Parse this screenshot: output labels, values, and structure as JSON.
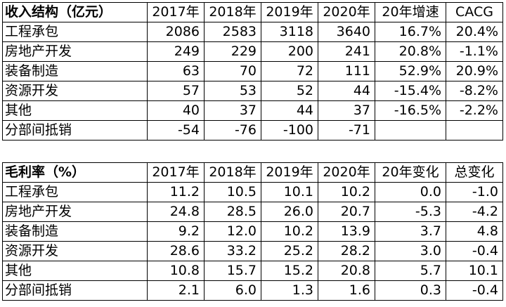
{
  "revenue": {
    "headers": [
      "收入结构（亿元）",
      "2017年",
      "2018年",
      "2019年",
      "2020年",
      "20年增速",
      "CACG"
    ],
    "rows": [
      [
        "工程承包",
        "2086",
        "2583",
        "3118",
        "3640",
        "16.7%",
        "20.4%"
      ],
      [
        "房地产开发",
        "249",
        "229",
        "200",
        "241",
        "20.8%",
        "-1.1%"
      ],
      [
        "装备制造",
        "63",
        "70",
        "72",
        "111",
        "52.9%",
        "20.9%"
      ],
      [
        "资源开发",
        "57",
        "53",
        "52",
        "44",
        "-15.4%",
        "-8.2%"
      ],
      [
        "其他",
        "40",
        "37",
        "44",
        "37",
        "-16.5%",
        "-2.2%"
      ],
      [
        "分部间抵销",
        "-54",
        "-76",
        "-100",
        "-71",
        "",
        ""
      ]
    ]
  },
  "margin": {
    "headers": [
      "毛利率（%）",
      "2017年",
      "2018年",
      "2019年",
      "2020年",
      "20年变化",
      "总变化"
    ],
    "rows": [
      [
        "工程承包",
        "11.2",
        "10.5",
        "10.1",
        "10.2",
        "0.0",
        "-1.0"
      ],
      [
        "房地产开发",
        "24.8",
        "28.5",
        "26.0",
        "20.7",
        "-5.3",
        "-4.2"
      ],
      [
        "装备制造",
        "9.2",
        "12.0",
        "10.2",
        "13.9",
        "3.7",
        "4.8"
      ],
      [
        "资源开发",
        "28.6",
        "33.2",
        "25.2",
        "28.2",
        "3.0",
        "-0.4"
      ],
      [
        "其他",
        "10.8",
        "15.7",
        "15.2",
        "20.8",
        "5.7",
        "10.1"
      ],
      [
        "分部间抵销",
        "2.1",
        "6.0",
        "1.3",
        "1.6",
        "0.3",
        "-0.4"
      ]
    ]
  }
}
